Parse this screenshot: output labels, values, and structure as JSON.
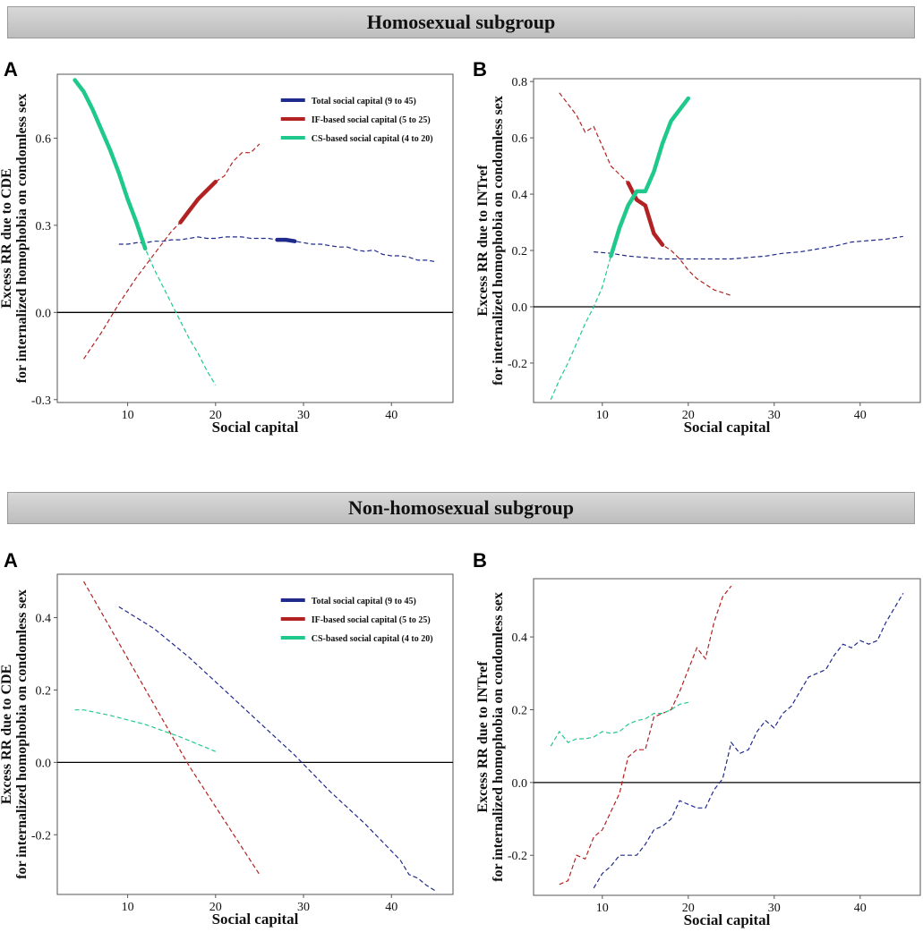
{
  "sections": {
    "top": {
      "title": "Homosexual subgroup"
    },
    "bottom": {
      "title": "Non-homosexual subgroup"
    }
  },
  "colors": {
    "total": "#1f2a8c",
    "if": "#b22222",
    "cs": "#1fc98c"
  },
  "chart_data": [
    {
      "id": "top-left",
      "panel": "A",
      "type": "line",
      "xlabel": "Social capital",
      "ylabel": [
        "Excess RR due to CDE",
        "for internalized homophobia on condomless sex"
      ],
      "xlim": [
        2,
        47
      ],
      "ylim": [
        -0.31,
        0.82
      ],
      "xticks": [
        10,
        20,
        30,
        40
      ],
      "yticks": [
        -0.3,
        0.0,
        0.3,
        0.6
      ],
      "ytick_labels": [
        "-0.3",
        "0.0",
        "0.3",
        "0.6"
      ],
      "reference_line": 0,
      "legend": [
        {
          "label": "Total social capital (9 to 45)",
          "key": "total"
        },
        {
          "label": "IF-based social capital (5 to 25)",
          "key": "if"
        },
        {
          "label": "CS-based social capital (4 to 20)",
          "key": "cs"
        }
      ],
      "series": [
        {
          "name": "Total social capital",
          "key": "total",
          "x": [
            9,
            10,
            11,
            12,
            13,
            14,
            15,
            16,
            17,
            18,
            19,
            20,
            21,
            22,
            23,
            24,
            25,
            26,
            27,
            28,
            29,
            30,
            31,
            32,
            33,
            34,
            35,
            36,
            37,
            38,
            39,
            40,
            41,
            42,
            43,
            44,
            45
          ],
          "y": [
            0.235,
            0.235,
            0.24,
            0.24,
            0.245,
            0.245,
            0.25,
            0.25,
            0.255,
            0.26,
            0.255,
            0.255,
            0.26,
            0.26,
            0.26,
            0.255,
            0.255,
            0.255,
            0.25,
            0.25,
            0.245,
            0.24,
            0.235,
            0.235,
            0.23,
            0.225,
            0.225,
            0.215,
            0.21,
            0.215,
            0.2,
            0.195,
            0.195,
            0.19,
            0.18,
            0.18,
            0.175
          ],
          "significant": [
            [
              27,
              29
            ]
          ]
        },
        {
          "name": "IF-based social capital",
          "key": "if",
          "x": [
            5,
            7,
            9,
            11,
            13,
            15,
            16,
            17,
            18,
            19,
            20,
            21,
            22,
            23,
            24,
            25
          ],
          "y": [
            -0.16,
            -0.07,
            0.03,
            0.12,
            0.2,
            0.28,
            0.31,
            0.35,
            0.39,
            0.42,
            0.45,
            0.47,
            0.52,
            0.55,
            0.55,
            0.58
          ],
          "significant": [
            [
              16,
              20
            ]
          ]
        },
        {
          "name": "CS-based social capital",
          "key": "cs",
          "x": [
            4,
            5,
            6,
            7,
            8,
            9,
            10,
            11,
            12,
            13,
            14,
            15,
            16,
            17,
            18,
            19,
            20
          ],
          "y": [
            0.8,
            0.76,
            0.7,
            0.63,
            0.56,
            0.48,
            0.39,
            0.31,
            0.22,
            0.15,
            0.09,
            0.03,
            -0.03,
            -0.09,
            -0.14,
            -0.2,
            -0.25
          ],
          "significant": [
            [
              4,
              12
            ]
          ]
        }
      ]
    },
    {
      "id": "top-right",
      "panel": "B",
      "type": "line",
      "xlabel": "Social capital",
      "ylabel": [
        "Excess RR due to INTref",
        "for internalized homophobia on condomless sex"
      ],
      "xlim": [
        2,
        47
      ],
      "ylim": [
        -0.34,
        0.81
      ],
      "xticks": [
        10,
        20,
        30,
        40
      ],
      "yticks": [
        -0.2,
        0.0,
        0.2,
        0.4,
        0.6,
        0.8
      ],
      "ytick_labels": [
        "-0.2",
        "0.0",
        "0.2",
        "0.4",
        "0.6",
        "0.8"
      ],
      "reference_line": 0,
      "series": [
        {
          "name": "Total social capital",
          "key": "total",
          "x": [
            9,
            11,
            13,
            15,
            17,
            19,
            21,
            23,
            25,
            27,
            29,
            31,
            33,
            35,
            37,
            39,
            41,
            43,
            45
          ],
          "y": [
            0.195,
            0.19,
            0.18,
            0.175,
            0.17,
            0.17,
            0.17,
            0.17,
            0.17,
            0.175,
            0.18,
            0.19,
            0.195,
            0.205,
            0.215,
            0.23,
            0.235,
            0.24,
            0.25
          ],
          "significant": []
        },
        {
          "name": "IF-based social capital",
          "key": "if",
          "x": [
            5,
            6,
            7,
            8,
            9,
            10,
            11,
            12,
            13,
            14,
            15,
            16,
            17,
            18,
            19,
            20,
            21,
            22,
            23,
            24,
            25
          ],
          "y": [
            0.76,
            0.72,
            0.68,
            0.62,
            0.64,
            0.57,
            0.5,
            0.47,
            0.44,
            0.38,
            0.36,
            0.26,
            0.22,
            0.2,
            0.17,
            0.13,
            0.1,
            0.08,
            0.06,
            0.05,
            0.04
          ],
          "significant": [
            [
              13,
              17
            ]
          ]
        },
        {
          "name": "CS-based social capital",
          "key": "cs",
          "x": [
            4,
            5,
            6,
            7,
            8,
            9,
            10,
            11,
            12,
            13,
            14,
            15,
            16,
            17,
            18,
            19,
            20
          ],
          "y": [
            -0.33,
            -0.26,
            -0.2,
            -0.13,
            -0.06,
            0.0,
            0.07,
            0.18,
            0.28,
            0.36,
            0.41,
            0.41,
            0.48,
            0.58,
            0.66,
            0.7,
            0.74
          ],
          "significant": [
            [
              11,
              20
            ]
          ]
        }
      ]
    },
    {
      "id": "bottom-left",
      "panel": "A",
      "type": "line",
      "xlabel": "Social capital",
      "ylabel": [
        "Excess RR due to CDE",
        "for internalized homophobia on condomless sex"
      ],
      "xlim": [
        2,
        47
      ],
      "ylim": [
        -0.365,
        0.52
      ],
      "xticks": [
        10,
        20,
        30,
        40
      ],
      "yticks": [
        -0.2,
        0.0,
        0.2,
        0.4
      ],
      "ytick_labels": [
        "-0.2",
        "0.0",
        "0.2",
        "0.4"
      ],
      "reference_line": 0,
      "legend": [
        {
          "label": "Total social capital (9 to 45)",
          "key": "total"
        },
        {
          "label": "IF-based social capital (5 to 25)",
          "key": "if"
        },
        {
          "label": "CS-based social capital (4 to 20)",
          "key": "cs"
        }
      ],
      "series": [
        {
          "name": "Total social capital",
          "key": "total",
          "x": [
            9,
            13,
            17,
            21,
            25,
            29,
            33,
            37,
            41,
            42,
            43,
            44,
            45
          ],
          "y": [
            0.43,
            0.37,
            0.29,
            0.2,
            0.11,
            0.02,
            -0.08,
            -0.17,
            -0.27,
            -0.31,
            -0.32,
            -0.34,
            -0.355
          ],
          "significant": []
        },
        {
          "name": "IF-based social capital",
          "key": "if",
          "x": [
            5,
            9,
            13,
            17,
            21,
            25
          ],
          "y": [
            0.5,
            0.33,
            0.16,
            -0.01,
            -0.16,
            -0.31
          ],
          "significant": []
        },
        {
          "name": "CS-based social capital",
          "key": "cs",
          "x": [
            4,
            5,
            8,
            12,
            16,
            20
          ],
          "y": [
            0.145,
            0.145,
            0.13,
            0.105,
            0.07,
            0.03
          ],
          "significant": []
        }
      ]
    },
    {
      "id": "bottom-right",
      "panel": "B",
      "type": "line",
      "xlabel": "Social capital",
      "ylabel": [
        "Excess RR due to INTref",
        "for internalized homophobia on condomless sex"
      ],
      "xlim": [
        2,
        47
      ],
      "ylim": [
        -0.31,
        0.56
      ],
      "xticks": [
        10,
        20,
        30,
        40
      ],
      "yticks": [
        -0.2,
        0.0,
        0.2,
        0.4
      ],
      "ytick_labels": [
        "-0.2",
        "0.0",
        "0.2",
        "0.4"
      ],
      "reference_line": 0,
      "series": [
        {
          "name": "Total social capital",
          "key": "total",
          "x": [
            9,
            10,
            11,
            12,
            13,
            14,
            15,
            16,
            17,
            18,
            19,
            20,
            21,
            22,
            23,
            24,
            25,
            26,
            27,
            28,
            29,
            30,
            31,
            32,
            33,
            34,
            35,
            36,
            37,
            38,
            39,
            40,
            41,
            42,
            43,
            44,
            45
          ],
          "y": [
            -0.29,
            -0.25,
            -0.23,
            -0.2,
            -0.2,
            -0.2,
            -0.17,
            -0.13,
            -0.12,
            -0.1,
            -0.05,
            -0.06,
            -0.07,
            -0.07,
            -0.02,
            0.01,
            0.11,
            0.08,
            0.09,
            0.14,
            0.17,
            0.15,
            0.19,
            0.21,
            0.25,
            0.29,
            0.3,
            0.31,
            0.35,
            0.38,
            0.37,
            0.39,
            0.38,
            0.39,
            0.44,
            0.48,
            0.52
          ],
          "significant": []
        },
        {
          "name": "IF-based social capital",
          "key": "if",
          "x": [
            5,
            6,
            7,
            8,
            9,
            10,
            11,
            12,
            13,
            14,
            15,
            16,
            17,
            18,
            19,
            20,
            21,
            22,
            23,
            24,
            25
          ],
          "y": [
            -0.28,
            -0.27,
            -0.2,
            -0.21,
            -0.15,
            -0.13,
            -0.08,
            -0.03,
            0.07,
            0.09,
            0.09,
            0.18,
            0.19,
            0.2,
            0.25,
            0.31,
            0.37,
            0.34,
            0.44,
            0.51,
            0.54
          ],
          "significant": []
        },
        {
          "name": "CS-based social capital",
          "key": "cs",
          "x": [
            4,
            5,
            6,
            7,
            8,
            9,
            10,
            11,
            12,
            13,
            14,
            15,
            16,
            17,
            18,
            19,
            20
          ],
          "y": [
            0.1,
            0.14,
            0.11,
            0.12,
            0.12,
            0.125,
            0.14,
            0.135,
            0.14,
            0.16,
            0.17,
            0.175,
            0.19,
            0.19,
            0.2,
            0.215,
            0.22
          ],
          "significant": []
        }
      ]
    }
  ]
}
